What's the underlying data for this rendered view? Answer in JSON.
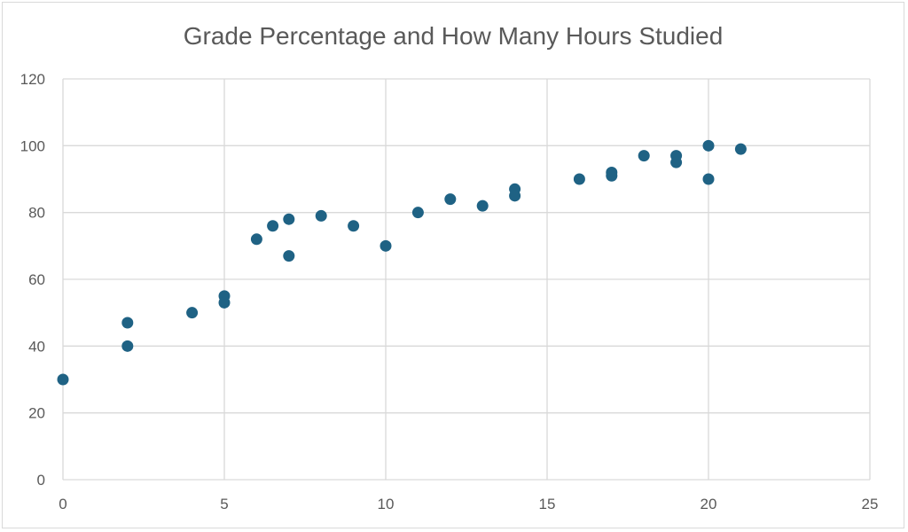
{
  "chart_data": {
    "type": "scatter",
    "title": "Grade Percentage and How Many Hours Studied",
    "xlabel": "",
    "ylabel": "",
    "xlim": [
      0,
      25
    ],
    "ylim": [
      0,
      120
    ],
    "x_ticks": [
      0,
      5,
      10,
      15,
      20,
      25
    ],
    "y_ticks": [
      0,
      20,
      40,
      60,
      80,
      100,
      120
    ],
    "grid": true,
    "legend": "none",
    "marker_color": "#1f6284",
    "points": [
      {
        "x": 0,
        "y": 30
      },
      {
        "x": 2,
        "y": 47
      },
      {
        "x": 2,
        "y": 40
      },
      {
        "x": 4,
        "y": 50
      },
      {
        "x": 5,
        "y": 55
      },
      {
        "x": 5,
        "y": 53
      },
      {
        "x": 6,
        "y": 72
      },
      {
        "x": 6.5,
        "y": 76
      },
      {
        "x": 7,
        "y": 78
      },
      {
        "x": 7,
        "y": 67
      },
      {
        "x": 8,
        "y": 79
      },
      {
        "x": 9,
        "y": 76
      },
      {
        "x": 10,
        "y": 70
      },
      {
        "x": 11,
        "y": 80
      },
      {
        "x": 12,
        "y": 84
      },
      {
        "x": 13,
        "y": 82
      },
      {
        "x": 14,
        "y": 87
      },
      {
        "x": 14,
        "y": 85
      },
      {
        "x": 16,
        "y": 90
      },
      {
        "x": 17,
        "y": 92
      },
      {
        "x": 17,
        "y": 91
      },
      {
        "x": 18,
        "y": 97
      },
      {
        "x": 19,
        "y": 97
      },
      {
        "x": 19,
        "y": 95
      },
      {
        "x": 20,
        "y": 100
      },
      {
        "x": 20,
        "y": 90
      },
      {
        "x": 21,
        "y": 99
      }
    ]
  }
}
